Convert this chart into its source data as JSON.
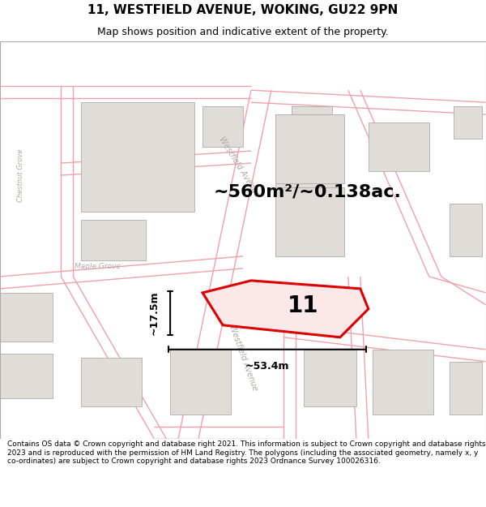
{
  "title": "11, WESTFIELD AVENUE, WOKING, GU22 9PN",
  "subtitle": "Map shows position and indicative extent of the property.",
  "footer": "Contains OS data © Crown copyright and database right 2021. This information is subject to Crown copyright and database rights 2023 and is reproduced with the permission of HM Land Registry. The polygons (including the associated geometry, namely x, y co-ordinates) are subject to Crown copyright and database rights 2023 Ordnance Survey 100026316.",
  "area_text": "~560m²/~0.138ac.",
  "property_number": "11",
  "dim_width": "~53.4m",
  "dim_height": "~17.5m",
  "map_bg": "#ffffff",
  "road_color": "#f0a0a8",
  "road_lw": 1.0,
  "building_color": "#e0dcd8",
  "building_edge": "#b0aca8",
  "building_lw": 0.6,
  "highlight_color": "#dd0000",
  "title_color": "#000000",
  "label_color": "#c0b8b4",
  "street_label_color": "#b0a8a4",
  "footer_fontsize": 6.5,
  "title_fontsize": 11,
  "subtitle_fontsize": 9
}
